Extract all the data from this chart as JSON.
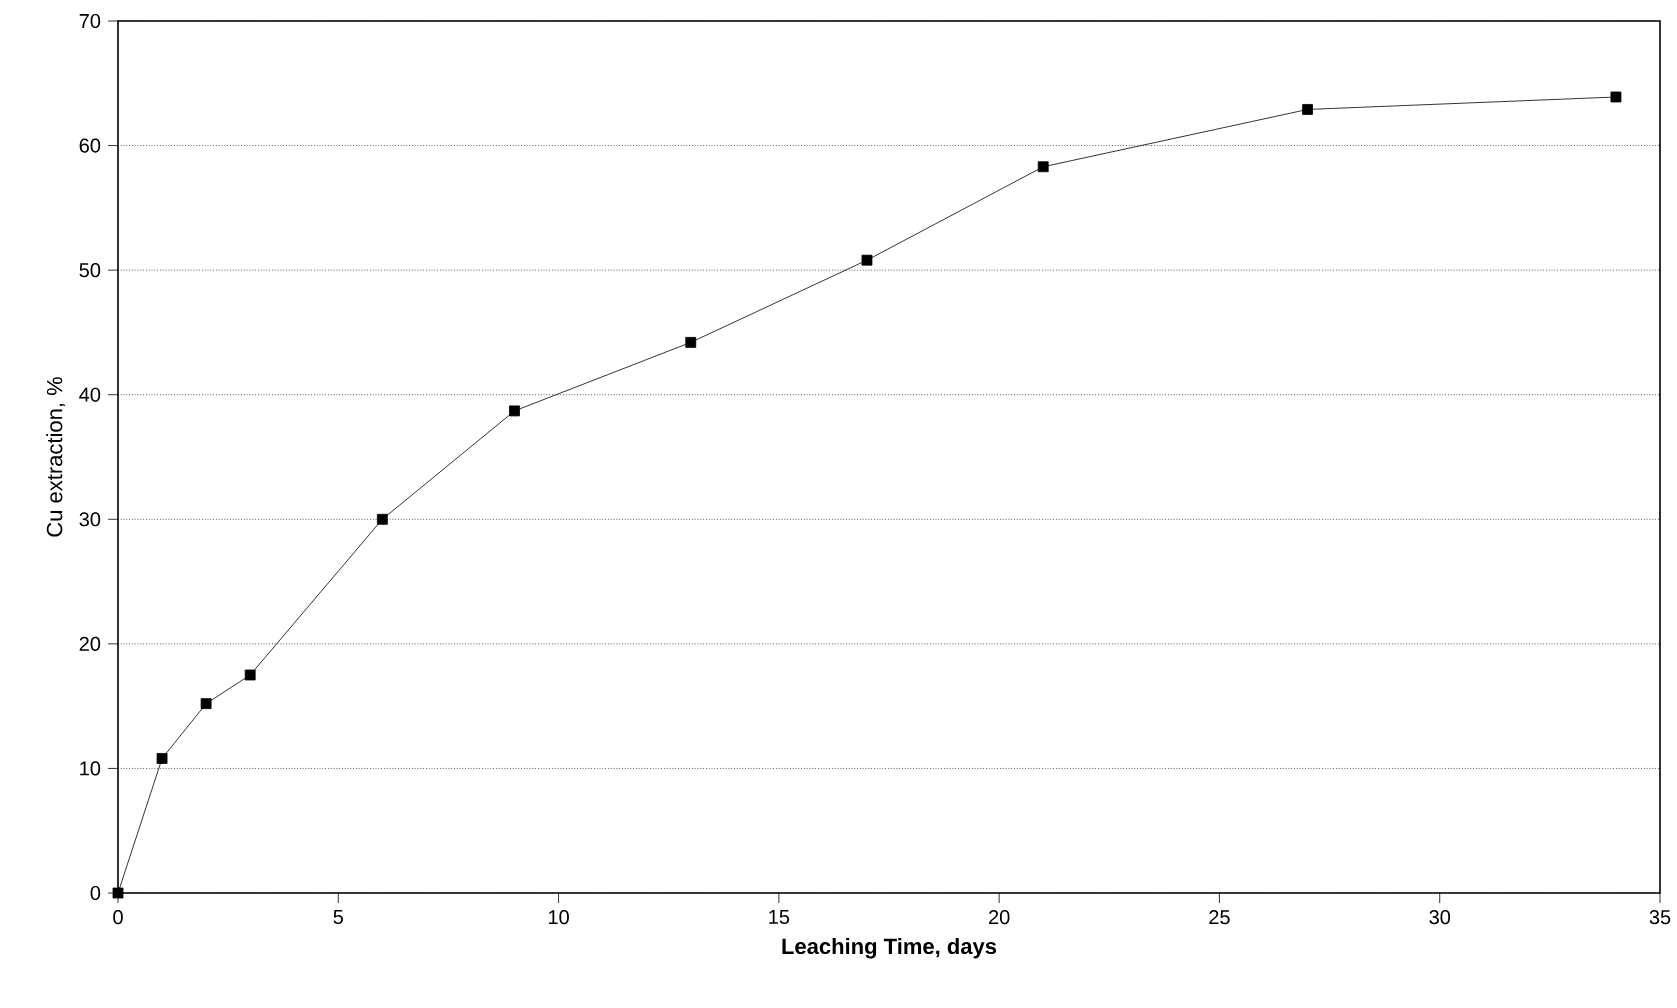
{
  "chart_data": {
    "type": "line",
    "xlabel": "**Leaching Time, days**",
    "ylabel": "Cu extraction, %",
    "x": [
      0,
      1,
      2,
      3,
      6,
      9,
      13,
      17,
      21,
      27,
      34
    ],
    "values": [
      0,
      10.8,
      15.2,
      17.5,
      30,
      38.7,
      44.2,
      50.8,
      58.3,
      62.9,
      63.9
    ],
    "color": "#000000",
    "xlim": [
      0,
      35
    ],
    "ylim": [
      0,
      70
    ],
    "xticks": [
      0,
      5,
      10,
      15,
      20,
      25,
      30,
      35
    ],
    "yticks": [
      0,
      10,
      20,
      30,
      40,
      50,
      60,
      70
    ],
    "grid": "y",
    "marker": "square",
    "line_style": "solid"
  }
}
